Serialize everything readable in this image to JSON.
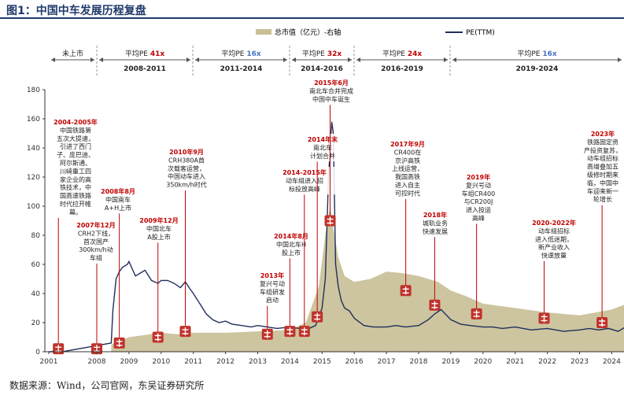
{
  "figure_title": "图1：中国中车发展历程复盘",
  "source": "数据来源：Wind，公司官网，东吴证券研究所",
  "colors": {
    "title": "#1f3a6b",
    "market_cap_area": "#c8bf95",
    "pe_line": "#1f2f5c",
    "annotation_text": "#c00000",
    "icon": "#c0322b"
  },
  "chart_data": {
    "type": "area",
    "legend_position": "top",
    "legend": [
      {
        "label": "总市值（亿元）-右轴",
        "kind": "area"
      },
      {
        "label": "PE(TTM)",
        "kind": "line"
      }
    ],
    "grid": false,
    "x_ticks": [
      "2001",
      "2008",
      "2009",
      "2010",
      "2011",
      "2012",
      "2013",
      "2014",
      "2015",
      "2016",
      "2017",
      "2018",
      "2019",
      "2020",
      "2021",
      "2022",
      "2023",
      "2024"
    ],
    "y_ticks": [
      "0",
      "20",
      "40",
      "60",
      "80",
      "100",
      "120",
      "140",
      "160",
      "180"
    ],
    "ylim": [
      0,
      180
    ],
    "periods": [
      {
        "label": "未上市",
        "pe_prefix": "",
        "pe_value": "",
        "years": ""
      },
      {
        "label": "",
        "pe_prefix": "平均PE",
        "pe_value": "41x",
        "years": "2008-2011"
      },
      {
        "label": "",
        "pe_prefix": "平均PE",
        "pe_value": "16x",
        "years": "2011-2014"
      },
      {
        "label": "",
        "pe_prefix": "平均PE",
        "pe_value": "32x",
        "years": "2014-2016"
      },
      {
        "label": "",
        "pe_prefix": "平均PE",
        "pe_value": "24x",
        "years": "2016-2019"
      },
      {
        "label": "",
        "pe_prefix": "平均PE",
        "pe_value": "16x",
        "years": "2019-2024"
      }
    ],
    "pe_series": {
      "name": "PE(TTM)",
      "x": [
        2001.0,
        2001.5,
        2002.0,
        2002.8,
        2003.0,
        2008.45,
        2008.5,
        2008.6,
        2008.7,
        2008.8,
        2008.95,
        2009.0,
        2009.2,
        2009.35,
        2009.5,
        2009.7,
        2009.9,
        2010.0,
        2010.2,
        2010.4,
        2010.6,
        2010.75,
        2010.9,
        2011.0,
        2011.2,
        2011.4,
        2011.6,
        2011.8,
        2012.0,
        2012.2,
        2012.5,
        2012.8,
        2013.0,
        2013.3,
        2013.6,
        2014.0,
        2014.3,
        2014.6,
        2014.8,
        2014.9,
        2015.0,
        2015.1,
        2015.2,
        2015.3,
        2015.35,
        2015.42,
        2015.5,
        2015.6,
        2015.7,
        2015.85,
        2016.0,
        2016.3,
        2016.6,
        2017.0,
        2017.3,
        2017.6,
        2018.0,
        2018.3,
        2018.5,
        2018.7,
        2019.0,
        2019.3,
        2019.6,
        2020.0,
        2020.3,
        2020.6,
        2021.0,
        2021.5,
        2022.0,
        2022.5,
        2023.0,
        2023.3,
        2023.6,
        2023.9,
        2024.2,
        2024.5,
        2024.7
      ],
      "values": [
        0,
        0,
        2,
        1,
        0,
        6,
        28,
        50,
        55,
        58,
        60,
        62,
        52,
        54,
        56,
        49,
        47,
        49,
        49,
        47,
        44,
        48,
        43,
        40,
        33,
        26,
        22,
        20,
        21,
        19,
        18,
        17,
        18,
        17,
        16,
        17,
        16,
        16,
        18,
        24,
        30,
        50,
        120,
        158,
        150,
        60,
        45,
        35,
        30,
        28,
        23,
        18,
        17,
        17,
        18,
        17,
        18,
        22,
        26,
        29,
        22,
        19,
        18,
        17,
        17,
        16,
        17,
        15,
        16,
        14,
        15,
        16,
        15,
        16,
        14,
        18,
        19
      ]
    },
    "market_cap_series": {
      "name": "总市值（亿元）-右轴",
      "x": [
        2008.45,
        2009.0,
        2010.0,
        2010.5,
        2011.0,
        2012.0,
        2013.0,
        2014.0,
        2014.5,
        2014.9,
        2015.1,
        2015.25,
        2015.35,
        2015.5,
        2015.7,
        2016.0,
        2016.5,
        2017.0,
        2017.5,
        2018.0,
        2018.3,
        2018.6,
        2019.0,
        2019.5,
        2020.0,
        2021.0,
        2022.0,
        2023.0,
        2023.5,
        2024.0,
        2024.7
      ],
      "values": [
        5,
        10,
        13,
        12,
        13,
        13,
        14,
        15,
        20,
        45,
        80,
        100,
        85,
        65,
        52,
        48,
        50,
        55,
        54,
        52,
        50,
        48,
        42,
        38,
        33,
        30,
        27,
        25,
        27,
        29,
        35
      ],
      "unit": "亿元",
      "axis": "right"
    },
    "events": [
      {
        "year": 2002.4,
        "icon_value": 2,
        "lines": [
          "2004-2005年",
          "中国铁路第",
          "五次大提速，",
          "引进了西门",
          "子、庞巴迪、",
          "阿尔斯通、",
          "川崎重工四",
          "家企业的高",
          "铁技术，中",
          "国高速铁路",
          "时代拉开帷",
          "幕。"
        ]
      },
      {
        "year": 2008.0,
        "icon_value": 2,
        "lines": [
          "2007年12月",
          "CRH2下线，",
          "首次国产",
          "300km/h动",
          "车组"
        ]
      },
      {
        "year": 2008.7,
        "icon_value": 6,
        "lines": [
          "2008年8月",
          "中国南车",
          "A+H上市"
        ]
      },
      {
        "year": 2009.9,
        "icon_value": 10,
        "lines": [
          "2009年12月",
          "中国北车",
          "A股上市"
        ]
      },
      {
        "year": 2010.75,
        "icon_value": 14,
        "lines": [
          "2010年9月",
          "CRH380A首",
          "次载客运营，",
          "中国动车进入",
          "350km/h时代"
        ]
      },
      {
        "year": 2013.3,
        "icon_value": 12,
        "lines": [
          "2013年",
          "复兴号动",
          "车组研发",
          "启动"
        ]
      },
      {
        "year": 2014.0,
        "icon_value": 14,
        "lines": [
          "2014年8月",
          "中国北车H",
          "股上市"
        ]
      },
      {
        "year": 2014.45,
        "icon_value": 14,
        "lines": [
          "2014-2015年",
          "动车组进入招",
          "标投放高峰"
        ]
      },
      {
        "year": 2014.85,
        "icon_value": 24,
        "lines": [
          "2014年末",
          "南北车",
          "计划合并"
        ]
      },
      {
        "year": 2015.25,
        "icon_value": 90,
        "lines": [
          "2015年6月",
          "南北车合并完成",
          "中国中车诞生"
        ]
      },
      {
        "year": 2017.6,
        "icon_value": 42,
        "lines": [
          "2017年9月",
          "CR400在",
          "京沪高铁",
          "上线运营，",
          "我国高铁",
          "进入自主",
          "可控时代"
        ]
      },
      {
        "year": 2018.5,
        "icon_value": 32,
        "lines": [
          "2018年",
          "城轨业务",
          "快速发展"
        ]
      },
      {
        "year": 2019.8,
        "icon_value": 26,
        "lines": [
          "2019年",
          "复兴号动",
          "车组CR400",
          "与CR200J",
          "进入投运",
          "高峰"
        ]
      },
      {
        "year": 2021.9,
        "icon_value": 23,
        "lines": [
          "2020-2022年",
          "动车组招标",
          "进入低迷期，",
          "新产业收入",
          "快速放量"
        ]
      },
      {
        "year": 2023.7,
        "icon_value": 20,
        "lines": [
          "2023年",
          "铁路固定资",
          "产投资复苏，",
          "动车组招标",
          "高增叠加五",
          "级修时期来",
          "临，中国中",
          "车迎来新一",
          "轮增长"
        ]
      }
    ]
  }
}
